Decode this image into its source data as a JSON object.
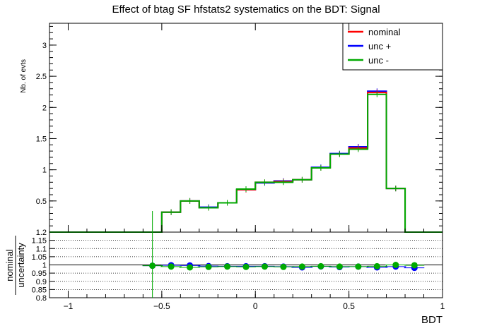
{
  "chart_data": {
    "type": "line",
    "title": "Effect of btag SF hfstats2 systematics on the BDT: Signal",
    "xlabel": "BDT",
    "ylabel": "Nb. of evts",
    "ratio_ylabel_num": "nominal",
    "ratio_ylabel_den": "uncertainty",
    "xlim": [
      -1.1,
      1.0
    ],
    "ylim": [
      0.0,
      3.35
    ],
    "ratio_ylim": [
      0.8,
      1.2
    ],
    "x_ticks": [
      "−1",
      "−0.5",
      "0",
      "0.5",
      "1"
    ],
    "x_tick_values": [
      -1,
      -0.5,
      0,
      0.5,
      1
    ],
    "y_ticks": [
      "0.5",
      "1",
      "1.5",
      "2",
      "2.5",
      "3"
    ],
    "y_tick_values": [
      0.5,
      1,
      1.5,
      2,
      2.5,
      3
    ],
    "ratio_ticks": [
      "0.8",
      "0.85",
      "0.9",
      "0.95",
      "1",
      "1.05",
      "1.1",
      "1.15",
      "1.2"
    ],
    "ratio_tick_values": [
      0.8,
      0.85,
      0.9,
      0.95,
      1,
      1.05,
      1.1,
      1.15,
      1.2
    ],
    "legend_position": "top-right",
    "grid_ratio": true,
    "bin_edges": [
      -1.1,
      -0.5,
      -0.4,
      -0.3,
      -0.2,
      -0.1,
      0.0,
      0.1,
      0.2,
      0.3,
      0.4,
      0.5,
      0.6,
      0.7,
      0.8,
      0.9,
      1.0
    ],
    "series": [
      {
        "name": "nominal",
        "color": "#ff0000",
        "values": [
          0.0,
          0.32,
          0.5,
          0.39,
          0.47,
          0.68,
          0.8,
          0.81,
          0.84,
          1.03,
          1.25,
          1.35,
          2.24,
          0.7,
          0.0,
          0.0
        ]
      },
      {
        "name": "unc +",
        "color": "#0000ff",
        "values": [
          0.0,
          0.32,
          0.5,
          0.4,
          0.47,
          0.68,
          0.79,
          0.82,
          0.84,
          1.04,
          1.26,
          1.37,
          2.26,
          0.7,
          0.0,
          0.0
        ]
      },
      {
        "name": "unc -",
        "color": "#00aa00",
        "values": [
          0.0,
          0.32,
          0.5,
          0.39,
          0.47,
          0.69,
          0.8,
          0.8,
          0.84,
          1.03,
          1.25,
          1.33,
          2.21,
          0.7,
          0.0,
          0.0
        ]
      }
    ],
    "ratio_points": {
      "x": [
        -0.55,
        -0.45,
        -0.35,
        -0.25,
        -0.15,
        -0.05,
        0.05,
        0.15,
        0.25,
        0.35,
        0.45,
        0.55,
        0.65,
        0.75,
        0.85
      ],
      "unc_plus": [
        0.995,
        0.998,
        0.997,
        0.993,
        0.992,
        0.992,
        0.992,
        0.99,
        0.985,
        0.991,
        0.987,
        0.99,
        0.985,
        0.99,
        0.982
      ],
      "unc_minus": [
        0.995,
        0.99,
        0.985,
        0.988,
        0.99,
        0.988,
        0.99,
        0.988,
        0.99,
        0.992,
        0.99,
        0.99,
        0.992,
        1.0,
        0.998
      ]
    }
  }
}
